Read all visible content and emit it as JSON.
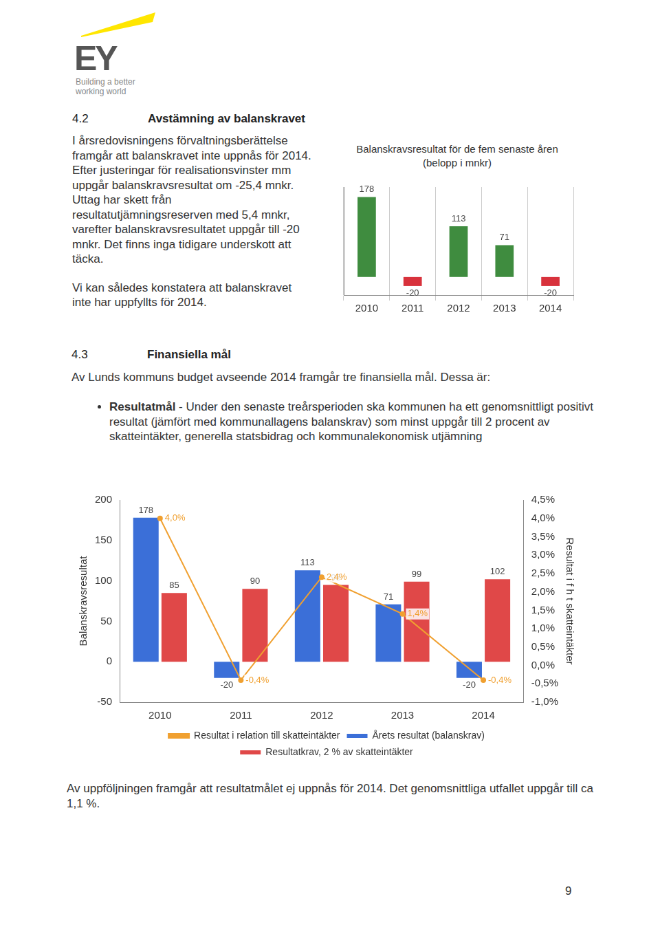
{
  "header": {
    "logo": "EY",
    "tagline": "Building a better working world"
  },
  "sections": [
    {
      "number": "4.2",
      "title": "Avstämning av balanskravet",
      "paragraphs": [
        "I årsredovisningens förvaltningsberättelse framgår att balanskravet inte uppnås för 2014. Efter justeringar för realisationsvinster mm uppgår balanskravsresultat om -25,4 mnkr. Uttag har skett från resultatutjämningsreserven med 5,4 mnkr, varefter balanskravsresultatet uppgår till -20 mnkr. Det finns inga tidigare underskott att täcka.",
        "Vi kan således konstatera att balanskravet inte har uppfyllts för 2014."
      ]
    },
    {
      "number": "4.3",
      "title": "Finansiella mål",
      "intro": "Av Lunds kommuns budget avseende 2014 framgår tre finansiella mål. Dessa är:",
      "bullets": [
        {
          "label": "Resultatmål",
          "text": "- Under den senaste treårsperioden ska kommunen ha ett genomsnittligt positivt resultat (jämfört med kommunallagens balanskrav) som minst uppgår till 2 procent av skatteintäkter, generella statsbidrag och kommunalekonomisk utjämning"
        }
      ],
      "conclusion": "Av uppföljningen framgår att resultatmålet ej uppnås för 2014. Det genomsnittliga utfallet uppgår till ca 1,1 %."
    }
  ],
  "page_number": 9,
  "chart_data": [
    {
      "type": "bar",
      "title": "Balanskravsresultat för de fem senaste åren (belopp i mnkr)",
      "categories": [
        "2010",
        "2011",
        "2012",
        "2013",
        "2014"
      ],
      "values": [
        178,
        -20,
        113,
        71,
        -20
      ],
      "colors": [
        "#3f8c3f",
        "#d8323c",
        "#3f8c3f",
        "#3f8c3f",
        "#d8323c"
      ],
      "ylim": [
        -40,
        200
      ],
      "grid": true,
      "data_labels": true,
      "tick_labels": "x"
    },
    {
      "type": "bar",
      "categories": [
        "2010",
        "2011",
        "2012",
        "2013",
        "2014"
      ],
      "series": [
        {
          "name": "Årets resultat (balanskrav)",
          "color": "#3b6fd8",
          "values": [
            178,
            -20,
            113,
            71,
            -20
          ]
        },
        {
          "name": "Resultatkrav, 2 % av skatteintäkter",
          "color": "#e04848",
          "values": [
            85,
            90,
            95,
            99,
            102
          ]
        },
        {
          "name": "Resultat i relation till skatteintäkter",
          "type": "line",
          "axis": "y2",
          "color": "#f0a030",
          "values": [
            4.0,
            -0.4,
            2.4,
            1.4,
            -0.4
          ],
          "value_labels": [
            "4,0%",
            "-0,4%",
            "2,4%",
            "1,4%",
            "-0,4%"
          ]
        }
      ],
      "y_label": "Balanskravsresultat",
      "y2_label": "Resultat i f h t skatteintäkter",
      "ylim": [
        -50,
        200
      ],
      "yticks": [
        -50,
        0,
        50,
        100,
        150,
        200
      ],
      "y2lim": [
        -1.0,
        4.5
      ],
      "y2ticks": [
        {
          "value": -1.0,
          "label": "-1,0%"
        },
        {
          "value": -0.5,
          "label": "-0,5%"
        },
        {
          "value": 0.0,
          "label": "0,0%"
        },
        {
          "value": 0.5,
          "label": "0,5%"
        },
        {
          "value": 1.0,
          "label": "1,0%"
        },
        {
          "value": 1.5,
          "label": "1,5%"
        },
        {
          "value": 2.0,
          "label": "2,0%"
        },
        {
          "value": 2.5,
          "label": "2,5%"
        },
        {
          "value": 3.0,
          "label": "3,0%"
        },
        {
          "value": 3.5,
          "label": "3,5%"
        },
        {
          "value": 4.0,
          "label": "4,0%"
        },
        {
          "value": 4.5,
          "label": "4,5%"
        }
      ],
      "grid": false,
      "data_labels": true,
      "legend": "bottom"
    }
  ]
}
